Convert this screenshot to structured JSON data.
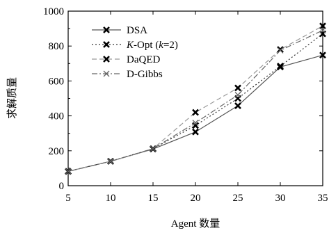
{
  "chart_data": {
    "type": "line",
    "title": "",
    "xlabel": "Agent 数量",
    "ylabel": "求解质量",
    "x": [
      5,
      10,
      15,
      20,
      25,
      30,
      35
    ],
    "xlim": [
      5,
      35
    ],
    "ylim": [
      0,
      1000
    ],
    "xticks": [
      5,
      10,
      15,
      20,
      25,
      30,
      35
    ],
    "yticks": [
      0,
      200,
      400,
      600,
      800,
      1000
    ],
    "grid": false,
    "legend_position": "top-left",
    "series": [
      {
        "name": "DSA",
        "values": [
          82,
          140,
          210,
          308,
          458,
          680,
          748
        ],
        "color": "#555555",
        "dash": "solid",
        "marker": "bold-x"
      },
      {
        "name": "K-Opt (k=2)",
        "name_parts": [
          "K",
          "-Opt (",
          "k",
          "=2)"
        ],
        "values": [
          82,
          140,
          212,
          345,
          500,
          685,
          870
        ],
        "color": "#333333",
        "dash": "dotted",
        "marker": "bold-x"
      },
      {
        "name": "DaQED",
        "values": [
          82,
          140,
          212,
          420,
          560,
          780,
          915
        ],
        "color": "#999999",
        "dash": "dashed",
        "marker": "bold-x"
      },
      {
        "name": "D-Gibbs",
        "values": [
          82,
          140,
          212,
          360,
          520,
          775,
          890
        ],
        "color": "#666666",
        "dash": "dashdot",
        "marker": "thin-x"
      }
    ]
  }
}
